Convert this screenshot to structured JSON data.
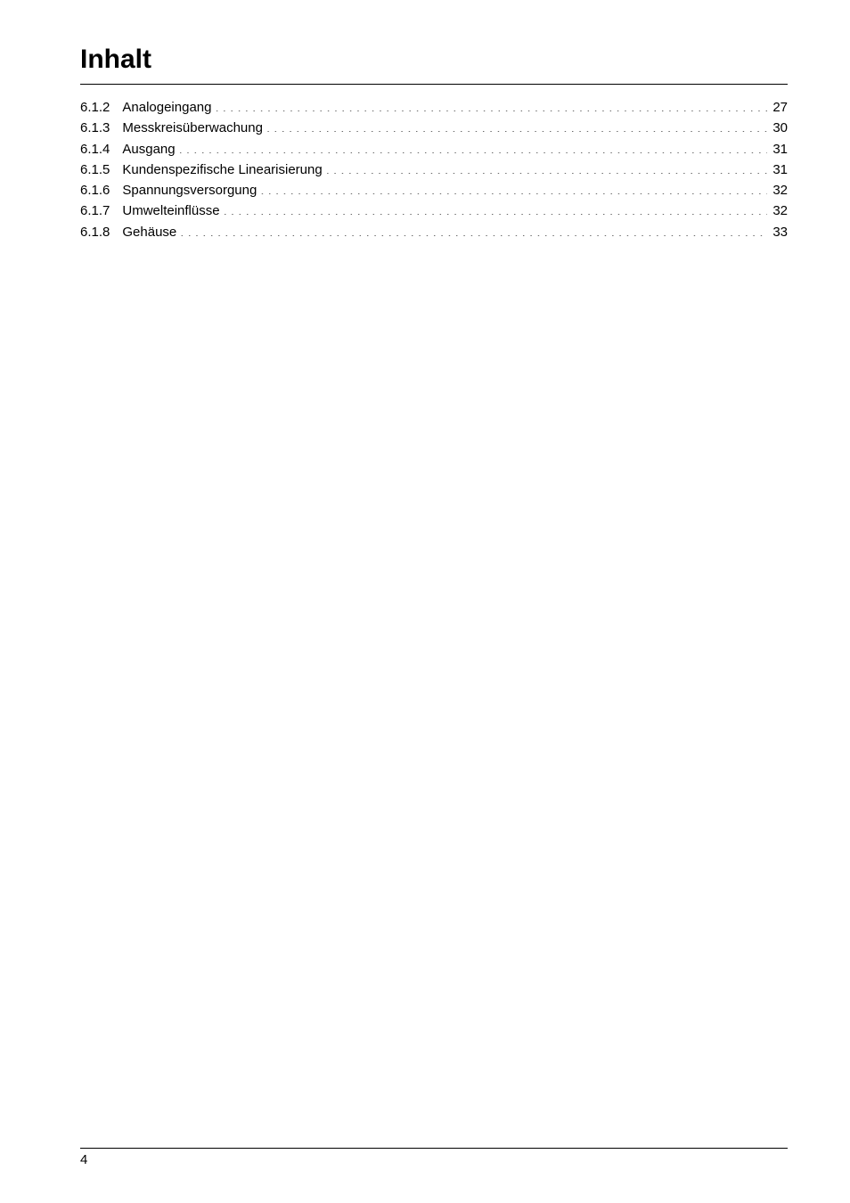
{
  "title": "Inhalt",
  "toc": {
    "entries": [
      {
        "num": "6.1.2",
        "text": "Analogeingang",
        "page": "27"
      },
      {
        "num": "6.1.3",
        "text": "Messkreisüberwachung",
        "page": "30"
      },
      {
        "num": "6.1.4",
        "text": "Ausgang",
        "page": "31"
      },
      {
        "num": "6.1.5",
        "text": "Kundenspezifische Linearisierung",
        "page": "31"
      },
      {
        "num": "6.1.6",
        "text": "Spannungsversorgung",
        "page": "32"
      },
      {
        "num": "6.1.7",
        "text": "Umwelteinflüsse",
        "page": "32"
      },
      {
        "num": "6.1.8",
        "text": "Gehäuse",
        "page": "33"
      }
    ]
  },
  "footer": {
    "page_number": "4"
  }
}
